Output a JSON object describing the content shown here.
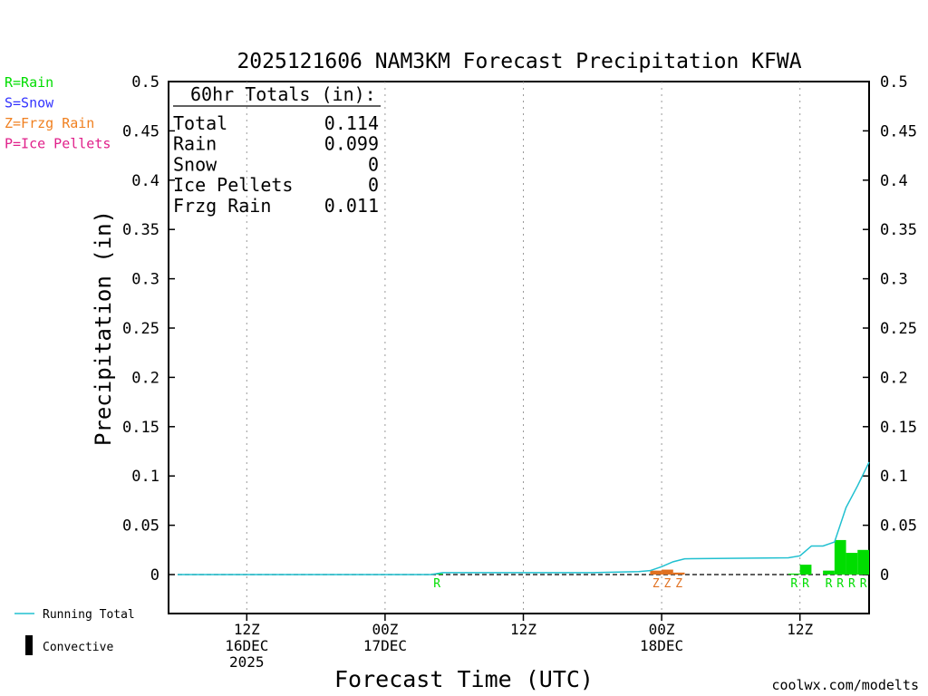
{
  "title": "2025121606 NAM3KM Forecast Precipitation KFWA",
  "legend_top": [
    {
      "label": "R=Rain",
      "color": "#00dd00"
    },
    {
      "label": "S=Snow",
      "color": "#3333ff"
    },
    {
      "label": "Z=Frzg Rain",
      "color": "#f08020"
    },
    {
      "label": "P=Ice Pellets",
      "color": "#e0208a"
    }
  ],
  "legend_bottom": {
    "running_total": "Running Total",
    "convective": "Convective"
  },
  "totals_box": {
    "heading": "60hr Totals (in):",
    "rows": [
      {
        "label": "Total",
        "value": "0.114"
      },
      {
        "label": "Rain",
        "value": "0.099"
      },
      {
        "label": "Snow",
        "value": "0"
      },
      {
        "label": "Ice Pellets",
        "value": "0"
      },
      {
        "label": "Frzg Rain",
        "value": "0.011"
      }
    ]
  },
  "credit": "coolwx.com/modelts",
  "colors": {
    "rain": "#00dd00",
    "frzg_rain": "#e07020",
    "running_total": "#20c0d0",
    "credit": "#dd2222"
  },
  "chart_data": {
    "type": "bar",
    "title": "2025121606 NAM3KM Forecast Precipitation KFWA",
    "xlabel": "Forecast Time (UTC)",
    "ylabel": "Precipitation (in)",
    "x_unit": "forecast hour from 2025-12-16 06Z",
    "xlim": [
      0,
      60
    ],
    "ylim": [
      -0.04,
      0.5
    ],
    "yticks": [
      0,
      0.05,
      0.1,
      0.15,
      0.2,
      0.25,
      0.3,
      0.35,
      0.4,
      0.45,
      0.5
    ],
    "ytick_labels": [
      "0",
      "0.05",
      "0.1",
      "0.15",
      "0.2",
      "0.25",
      "0.3",
      "0.35",
      "0.4",
      "0.45",
      "0.5"
    ],
    "xticks": [
      {
        "hour": 6,
        "lines": [
          "12Z",
          "16DEC",
          "2025"
        ]
      },
      {
        "hour": 18,
        "lines": [
          "00Z",
          "17DEC"
        ]
      },
      {
        "hour": 30,
        "lines": [
          "12Z"
        ]
      },
      {
        "hour": 42,
        "lines": [
          "00Z",
          "18DEC"
        ]
      },
      {
        "hour": 54,
        "lines": [
          "12Z"
        ]
      }
    ],
    "grid": "vertical dotted at tick hours",
    "series": [
      {
        "name": "Rain",
        "kind": "bars",
        "hours": [
          23,
          54,
          55,
          57,
          58,
          59,
          60
        ],
        "values": [
          0.001,
          0.001,
          0.01,
          0.004,
          0.035,
          0.022,
          0.025
        ],
        "type_letters": [
          "R",
          "R",
          "R",
          "R",
          "R",
          "R",
          "R"
        ]
      },
      {
        "name": "Frzg Rain",
        "kind": "bars",
        "hours": [
          42,
          43,
          44
        ],
        "values": [
          0.004,
          0.005,
          0.002
        ],
        "type_letters": [
          "Z",
          "Z",
          "Z"
        ]
      },
      {
        "name": "Running Total",
        "kind": "line",
        "x": [
          0,
          22,
          23,
          36,
          40,
          41,
          42,
          43,
          44,
          53,
          54,
          55,
          56,
          57,
          58,
          59,
          60
        ],
        "y": [
          0,
          0,
          0.002,
          0.002,
          0.003,
          0.004,
          0.008,
          0.013,
          0.016,
          0.017,
          0.019,
          0.029,
          0.029,
          0.033,
          0.068,
          0.09,
          0.114
        ]
      }
    ]
  }
}
